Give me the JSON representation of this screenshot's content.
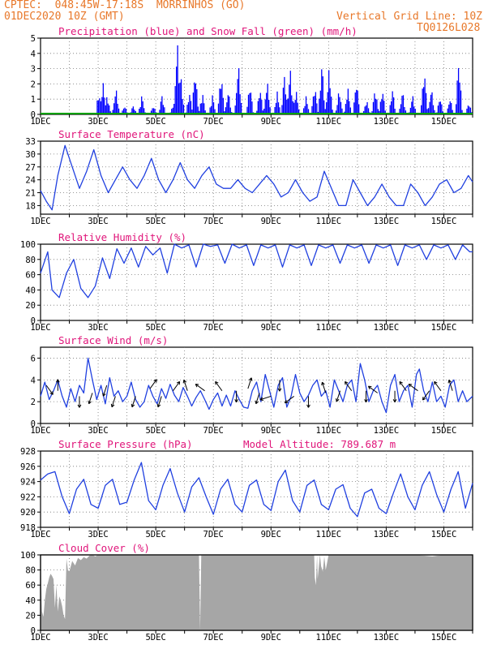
{
  "header": {
    "line1": "CPTEC:  048:45W-17:18S  MORRINHOS (GO)",
    "date": "01DEC2020 10Z (GMT)",
    "grid_note": "Vertical Grid Line: 10Z",
    "model_code": "TQ0126L028"
  },
  "colors": {
    "header": "#e8782a",
    "panel_title": "#e0157a",
    "precip": "#0000ff",
    "snow": "#00a000",
    "line": "#2040e0",
    "wind_arrow": "#000000",
    "cloud": "#a6a6a6"
  },
  "x_axis": {
    "start_day": 1,
    "end_day": 16,
    "tick_labels": [
      "1DEC",
      "3DEC",
      "5DEC",
      "7DEC",
      "9DEC",
      "11DEC",
      "13DEC",
      "15DEC"
    ]
  },
  "chart_data": [
    {
      "type": "bar",
      "title": "Precipitation (blue) and Snow Fall (green) (mm/h)",
      "ylim": [
        0,
        5
      ],
      "yticks": [
        0,
        1,
        2,
        3,
        4,
        5
      ],
      "series": [
        {
          "name": "Precipitation",
          "color": "#0000ff",
          "peaks": [
            [
              3.0,
              1.5
            ],
            [
              3.15,
              2.2
            ],
            [
              3.3,
              1.3
            ],
            [
              3.6,
              1.8
            ],
            [
              3.9,
              0.6
            ],
            [
              4.2,
              0.6
            ],
            [
              4.5,
              1.3
            ],
            [
              4.9,
              0.6
            ],
            [
              5.2,
              1.3
            ],
            [
              5.6,
              0.8
            ],
            [
              5.73,
              5.0
            ],
            [
              5.85,
              2.8
            ],
            [
              6.15,
              1.5
            ],
            [
              6.35,
              3.0
            ],
            [
              6.6,
              1.5
            ],
            [
              6.95,
              1.3
            ],
            [
              7.25,
              2.8
            ],
            [
              7.5,
              1.6
            ],
            [
              7.85,
              3.5
            ],
            [
              8.25,
              2.1
            ],
            [
              8.6,
              1.8
            ],
            [
              8.85,
              2.3
            ],
            [
              9.2,
              1.5
            ],
            [
              9.45,
              2.7
            ],
            [
              9.65,
              3.1
            ],
            [
              9.85,
              1.7
            ],
            [
              10.2,
              1.2
            ],
            [
              10.5,
              2.0
            ],
            [
              10.75,
              3.5
            ],
            [
              11.0,
              3.1
            ],
            [
              11.35,
              1.7
            ],
            [
              11.65,
              1.8
            ],
            [
              11.95,
              2.3
            ],
            [
              12.3,
              1.0
            ],
            [
              12.6,
              1.8
            ],
            [
              12.85,
              1.7
            ],
            [
              13.2,
              1.7
            ],
            [
              13.55,
              1.6
            ],
            [
              13.9,
              1.3
            ],
            [
              14.3,
              3.1
            ],
            [
              14.55,
              1.8
            ],
            [
              14.85,
              1.2
            ],
            [
              15.2,
              1.1
            ],
            [
              15.5,
              3.7
            ],
            [
              15.85,
              0.8
            ]
          ]
        },
        {
          "name": "Snow Fall",
          "color": "#00a000",
          "values": "all 0"
        }
      ]
    },
    {
      "type": "line",
      "title": "Surface Temperature (nC)",
      "ylim": [
        16,
        33
      ],
      "yticks": [
        18,
        21,
        24,
        27,
        30,
        33
      ],
      "x": [
        1.0,
        1.2,
        1.4,
        1.6,
        1.85,
        2.1,
        2.35,
        2.6,
        2.85,
        3.1,
        3.35,
        3.6,
        3.85,
        4.1,
        4.35,
        4.6,
        4.85,
        5.1,
        5.35,
        5.6,
        5.85,
        6.1,
        6.35,
        6.6,
        6.85,
        7.1,
        7.35,
        7.6,
        7.85,
        8.1,
        8.35,
        8.6,
        8.85,
        9.1,
        9.35,
        9.6,
        9.85,
        10.1,
        10.35,
        10.6,
        10.85,
        11.1,
        11.35,
        11.6,
        11.85,
        12.1,
        12.35,
        12.6,
        12.85,
        13.1,
        13.35,
        13.6,
        13.85,
        14.1,
        14.35,
        14.6,
        14.85,
        15.1,
        15.35,
        15.6,
        15.85,
        16.0
      ],
      "y": [
        21.5,
        19,
        17,
        25,
        32,
        27,
        22,
        26,
        31,
        25,
        21,
        24,
        27,
        24,
        22,
        25,
        29,
        24,
        21,
        24,
        28,
        24,
        22,
        25,
        27,
        23,
        22,
        22,
        24,
        22,
        21,
        23,
        25,
        23,
        20,
        21,
        24,
        21,
        19,
        20,
        26,
        22,
        18,
        18,
        24,
        21,
        18,
        20,
        23,
        20,
        18,
        18,
        23,
        21,
        18,
        20,
        23,
        24,
        21,
        22,
        25,
        23.5
      ]
    },
    {
      "type": "line",
      "title": "Relative Humidity (%)",
      "ylim": [
        0,
        100
      ],
      "yticks": [
        0,
        20,
        40,
        60,
        80,
        100
      ],
      "x": [
        1.0,
        1.25,
        1.4,
        1.65,
        1.9,
        2.15,
        2.4,
        2.65,
        2.9,
        3.15,
        3.4,
        3.65,
        3.9,
        4.15,
        4.4,
        4.65,
        4.9,
        5.15,
        5.4,
        5.65,
        5.9,
        6.15,
        6.4,
        6.65,
        6.9,
        7.15,
        7.4,
        7.65,
        7.9,
        8.15,
        8.4,
        8.65,
        8.9,
        9.15,
        9.4,
        9.65,
        9.9,
        10.15,
        10.4,
        10.65,
        10.9,
        11.15,
        11.4,
        11.65,
        11.9,
        12.15,
        12.4,
        12.65,
        12.9,
        13.15,
        13.4,
        13.65,
        13.9,
        14.15,
        14.4,
        14.65,
        14.9,
        15.15,
        15.4,
        15.65,
        15.9,
        16.0
      ],
      "y": [
        62,
        90,
        40,
        30,
        62,
        80,
        42,
        30,
        45,
        82,
        55,
        94,
        75,
        95,
        70,
        97,
        86,
        95,
        62,
        100,
        95,
        99,
        70,
        100,
        97,
        99,
        75,
        100,
        95,
        99,
        72,
        99,
        95,
        99,
        70,
        99,
        95,
        99,
        72,
        99,
        95,
        99,
        75,
        99,
        95,
        99,
        75,
        99,
        95,
        99,
        72,
        99,
        95,
        99,
        80,
        99,
        95,
        99,
        80,
        99,
        90,
        90
      ]
    },
    {
      "type": "line",
      "title": "Surface Wind (m/s)",
      "ylim": [
        0,
        7
      ],
      "yticks": [
        0,
        2,
        4,
        6
      ],
      "x": [
        1.0,
        1.15,
        1.3,
        1.45,
        1.6,
        1.75,
        1.9,
        2.05,
        2.2,
        2.35,
        2.5,
        2.65,
        2.8,
        2.95,
        3.1,
        3.25,
        3.4,
        3.55,
        3.7,
        3.85,
        4.0,
        4.15,
        4.3,
        4.45,
        4.6,
        4.75,
        4.9,
        5.05,
        5.2,
        5.35,
        5.5,
        5.65,
        5.8,
        5.95,
        6.1,
        6.25,
        6.4,
        6.55,
        6.7,
        6.85,
        7.0,
        7.15,
        7.3,
        7.45,
        7.6,
        7.75,
        7.9,
        8.05,
        8.2,
        8.35,
        8.5,
        8.65,
        8.8,
        8.95,
        9.1,
        9.25,
        9.4,
        9.55,
        9.7,
        9.85,
        10.0,
        10.15,
        10.3,
        10.45,
        10.6,
        10.75,
        10.9,
        11.05,
        11.2,
        11.35,
        11.5,
        11.65,
        11.8,
        11.95,
        12.1,
        12.25,
        12.4,
        12.55,
        12.7,
        12.85,
        13.0,
        13.15,
        13.3,
        13.45,
        13.6,
        13.75,
        13.9,
        14.05,
        14.15,
        14.3,
        14.45,
        14.6,
        14.75,
        14.9,
        15.05,
        15.2,
        15.35,
        15.5,
        15.65,
        15.8,
        16.0
      ],
      "y": [
        2.5,
        3.8,
        2.2,
        3.0,
        4.0,
        2.5,
        1.5,
        3.2,
        2.0,
        3.5,
        2.8,
        6.0,
        4.0,
        2.2,
        3.5,
        1.8,
        4.2,
        2.5,
        3.0,
        2.0,
        2.5,
        3.8,
        2.2,
        1.5,
        2.0,
        3.5,
        2.5,
        1.8,
        3.2,
        2.3,
        3.6,
        2.6,
        2.0,
        3.3,
        2.5,
        1.6,
        2.4,
        3.0,
        2.2,
        1.3,
        2.2,
        2.8,
        1.6,
        2.6,
        1.6,
        3.0,
        2.2,
        1.5,
        1.4,
        3.0,
        3.8,
        2.0,
        4.5,
        3.0,
        1.5,
        3.5,
        4.2,
        1.5,
        2.5,
        4.5,
        2.8,
        2.0,
        2.6,
        3.5,
        4.0,
        2.5,
        3.0,
        1.5,
        4.0,
        3.0,
        2.0,
        3.5,
        4.0,
        2.0,
        5.5,
        4.0,
        2.0,
        3.0,
        3.5,
        2.0,
        1.0,
        3.5,
        4.5,
        2.0,
        3.0,
        3.5,
        1.5,
        4.5,
        5.0,
        3.0,
        2.0,
        3.8,
        2.0,
        2.5,
        1.5,
        3.5,
        4.0,
        2.0,
        3.0,
        2.0,
        2.5
      ],
      "arrows": [
        [
          1.2,
          -0.3,
          3.5
        ],
        [
          1.6,
          0.5,
          3.0
        ],
        [
          2.35,
          -0.5,
          2.5
        ],
        [
          2.8,
          -0.6,
          2.8
        ],
        [
          3.3,
          -0.6,
          3.5
        ],
        [
          3.6,
          -0.6,
          2.5
        ],
        [
          4.3,
          -0.6,
          2.5
        ],
        [
          4.8,
          0.3,
          3.2
        ],
        [
          5.2,
          -0.6,
          2.5
        ],
        [
          5.6,
          0.3,
          3.0
        ],
        [
          6.1,
          0.6,
          3.0
        ],
        [
          6.7,
          0.8,
          3.0
        ],
        [
          7.3,
          0.7,
          3.0
        ],
        [
          7.8,
          -0.5,
          3.0
        ],
        [
          8.2,
          0.4,
          3.2
        ],
        [
          8.6,
          -0.6,
          2.8
        ],
        [
          9.0,
          -0.9,
          2.5
        ],
        [
          9.3,
          -0.5,
          4.0
        ],
        [
          9.8,
          -0.8,
          2.5
        ],
        [
          10.3,
          -0.5,
          2.5
        ],
        [
          10.9,
          0.6,
          2.8
        ],
        [
          11.4,
          -0.6,
          3.0
        ],
        [
          11.8,
          0.7,
          3.0
        ],
        [
          12.3,
          -0.5,
          3.0
        ],
        [
          12.7,
          0.8,
          2.8
        ],
        [
          13.3,
          -0.5,
          3.0
        ],
        [
          13.7,
          0.7,
          3.0
        ],
        [
          14.1,
          0.8,
          3.0
        ],
        [
          14.5,
          -0.7,
          3.0
        ],
        [
          14.9,
          0.7,
          3.0
        ],
        [
          15.3,
          0.6,
          3.0
        ]
      ]
    },
    {
      "type": "line",
      "title": "Surface Pressure (hPa)",
      "annotation": "Model Altitude: 789.687 m",
      "ylim": [
        918,
        928
      ],
      "yticks": [
        918,
        920,
        922,
        924,
        926,
        928
      ],
      "x": [
        1.0,
        1.25,
        1.5,
        1.75,
        2.0,
        2.25,
        2.5,
        2.75,
        3.0,
        3.25,
        3.5,
        3.75,
        4.0,
        4.25,
        4.5,
        4.75,
        5.0,
        5.25,
        5.5,
        5.75,
        6.0,
        6.25,
        6.5,
        6.75,
        7.0,
        7.25,
        7.5,
        7.75,
        8.0,
        8.25,
        8.5,
        8.75,
        9.0,
        9.25,
        9.5,
        9.75,
        10.0,
        10.25,
        10.5,
        10.75,
        11.0,
        11.25,
        11.5,
        11.75,
        12.0,
        12.25,
        12.5,
        12.75,
        13.0,
        13.25,
        13.5,
        13.75,
        14.0,
        14.25,
        14.5,
        14.75,
        15.0,
        15.25,
        15.5,
        15.75,
        16.0
      ],
      "y": [
        924.2,
        925.0,
        925.3,
        922.0,
        919.8,
        923.0,
        924.3,
        921.0,
        920.5,
        923.5,
        924.3,
        921.0,
        921.3,
        924.2,
        926.5,
        921.5,
        920.3,
        923.5,
        925.7,
        922.5,
        920.0,
        923.3,
        924.5,
        922.0,
        919.7,
        923.0,
        924.3,
        921.0,
        920.0,
        923.5,
        924.2,
        921.0,
        920.2,
        924.0,
        925.5,
        921.5,
        920.0,
        923.5,
        924.2,
        921.0,
        920.3,
        923.0,
        923.6,
        920.5,
        919.4,
        922.5,
        923.0,
        920.5,
        919.8,
        922.5,
        925.0,
        922.0,
        920.3,
        923.5,
        925.3,
        922.3,
        920.0,
        923.0,
        925.3,
        920.5,
        923.8
      ]
    },
    {
      "type": "area",
      "title": "Cloud Cover (%)",
      "ylim": [
        0,
        100
      ],
      "yticks": [
        0,
        20,
        40,
        60,
        80,
        100
      ],
      "x": [
        1.0,
        1.05,
        1.1,
        1.15,
        1.2,
        1.25,
        1.3,
        1.35,
        1.4,
        1.45,
        1.5,
        1.55,
        1.6,
        1.65,
        1.7,
        1.75,
        1.8,
        1.85,
        1.9,
        1.95,
        2.0,
        2.1,
        2.2,
        2.3,
        2.4,
        2.5,
        2.6,
        2.7,
        2.8,
        2.9,
        3.0,
        4.0,
        5.0,
        6.5,
        6.54,
        6.58,
        7.0,
        9.0,
        10.5,
        10.52,
        10.56,
        10.6,
        10.62,
        10.7,
        10.74,
        10.8,
        10.85,
        10.9,
        11.0,
        14.0,
        14.6,
        15.0,
        16.0
      ],
      "y": [
        100,
        25,
        18,
        40,
        55,
        62,
        70,
        75,
        72,
        68,
        30,
        60,
        25,
        45,
        40,
        32,
        20,
        15,
        95,
        80,
        78,
        92,
        86,
        96,
        93,
        97,
        95,
        99,
        100,
        98,
        100,
        100,
        100,
        100,
        0,
        100,
        100,
        100,
        100,
        70,
        60,
        100,
        68,
        100,
        85,
        78,
        98,
        80,
        100,
        100,
        98,
        100,
        100
      ]
    }
  ]
}
